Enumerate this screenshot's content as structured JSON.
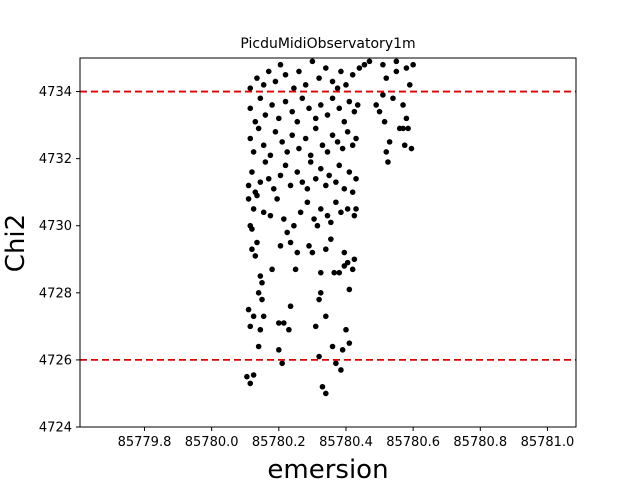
{
  "chart_data": {
    "type": "scatter",
    "title": "PicduMidiObservatory1m",
    "xlabel": "emersion",
    "ylabel": "Chi2",
    "xlim": [
      85779.608,
      85781.085
    ],
    "ylim": [
      4724,
      4735
    ],
    "x_ticks": [
      85779.8,
      85780.0,
      85780.2,
      85780.4,
      85780.6,
      85780.8,
      85781.0
    ],
    "x_tick_labels": [
      "85779.8",
      "85780.0",
      "85780.2",
      "85780.4",
      "85780.6",
      "85780.8",
      "85781.0"
    ],
    "y_ticks": [
      4724,
      4726,
      4728,
      4730,
      4732,
      4734
    ],
    "y_tick_labels": [
      "4724",
      "4726",
      "4728",
      "4730",
      "4732",
      "4734"
    ],
    "hlines": [
      4726,
      4734
    ],
    "hline_color": "#e00000",
    "marker_color": "#000000",
    "grid": false,
    "points": [
      [
        85780.105,
        4725.5
      ],
      [
        85780.115,
        4725.3
      ],
      [
        85780.125,
        4725.55
      ],
      [
        85780.2,
        4726.3
      ],
      [
        85780.21,
        4725.9
      ],
      [
        85780.32,
        4726.1
      ],
      [
        85780.33,
        4725.2
      ],
      [
        85780.34,
        4725.0
      ],
      [
        85780.36,
        4726.4
      ],
      [
        85780.37,
        4725.9
      ],
      [
        85780.385,
        4725.7
      ],
      [
        85780.39,
        4726.3
      ],
      [
        85780.4,
        4726.9
      ],
      [
        85780.41,
        4726.5
      ],
      [
        85780.11,
        4727.5
      ],
      [
        85780.115,
        4727.0
      ],
      [
        85780.125,
        4727.3
      ],
      [
        85780.14,
        4728.0
      ],
      [
        85780.15,
        4727.8
      ],
      [
        85780.155,
        4727.3
      ],
      [
        85780.2,
        4727.1
      ],
      [
        85780.215,
        4727.1
      ],
      [
        85780.23,
        4726.9
      ],
      [
        85780.235,
        4727.6
      ],
      [
        85780.31,
        4727.0
      ],
      [
        85780.32,
        4727.8
      ],
      [
        85780.325,
        4728.0
      ],
      [
        85780.34,
        4727.3
      ],
      [
        85780.38,
        4728.6
      ],
      [
        85780.395,
        4728.8
      ],
      [
        85780.41,
        4728.1
      ],
      [
        85780.42,
        4728.7
      ],
      [
        85780.14,
        4726.4
      ],
      [
        85780.145,
        4726.9
      ],
      [
        85780.12,
        4729.3
      ],
      [
        85780.13,
        4729.1
      ],
      [
        85780.135,
        4729.5
      ],
      [
        85780.145,
        4728.5
      ],
      [
        85780.15,
        4728.3
      ],
      [
        85780.18,
        4728.7
      ],
      [
        85780.205,
        4729.4
      ],
      [
        85780.225,
        4729.8
      ],
      [
        85780.235,
        4729.5
      ],
      [
        85780.25,
        4728.7
      ],
      [
        85780.255,
        4729.2
      ],
      [
        85780.29,
        4729.4
      ],
      [
        85780.3,
        4729.2
      ],
      [
        85780.325,
        4728.6
      ],
      [
        85780.34,
        4729.3
      ],
      [
        85780.355,
        4729.6
      ],
      [
        85780.365,
        4728.6
      ],
      [
        85780.395,
        4729.2
      ],
      [
        85780.405,
        4728.9
      ],
      [
        85780.425,
        4729.0
      ],
      [
        85780.115,
        4730.0
      ],
      [
        85780.125,
        4730.5
      ],
      [
        85780.135,
        4730.9
      ],
      [
        85780.155,
        4730.4
      ],
      [
        85780.175,
        4730.3
      ],
      [
        85780.195,
        4730.8
      ],
      [
        85780.215,
        4730.2
      ],
      [
        85780.245,
        4730.0
      ],
      [
        85780.265,
        4730.4
      ],
      [
        85780.285,
        4730.7
      ],
      [
        85780.305,
        4730.2
      ],
      [
        85780.315,
        4730.0
      ],
      [
        85780.325,
        4730.5
      ],
      [
        85780.345,
        4730.3
      ],
      [
        85780.355,
        4730.1
      ],
      [
        85780.37,
        4730.7
      ],
      [
        85780.385,
        4730.4
      ],
      [
        85780.405,
        4730.5
      ],
      [
        85780.425,
        4730.3
      ],
      [
        85780.43,
        4730.5
      ],
      [
        85780.11,
        4730.8
      ],
      [
        85780.12,
        4729.9
      ],
      [
        85780.11,
        4731.2
      ],
      [
        85780.12,
        4731.6
      ],
      [
        85780.13,
        4731.0
      ],
      [
        85780.145,
        4731.3
      ],
      [
        85780.16,
        4731.9
      ],
      [
        85780.17,
        4731.4
      ],
      [
        85780.185,
        4731.1
      ],
      [
        85780.205,
        4731.5
      ],
      [
        85780.22,
        4731.8
      ],
      [
        85780.235,
        4731.2
      ],
      [
        85780.255,
        4731.6
      ],
      [
        85780.27,
        4731.3
      ],
      [
        85780.285,
        4731.1
      ],
      [
        85780.295,
        4731.9
      ],
      [
        85780.31,
        4731.4
      ],
      [
        85780.325,
        4731.7
      ],
      [
        85780.34,
        4731.2
      ],
      [
        85780.35,
        4731.5
      ],
      [
        85780.37,
        4731.3
      ],
      [
        85780.38,
        4731.8
      ],
      [
        85780.395,
        4731.1
      ],
      [
        85780.41,
        4731.6
      ],
      [
        85780.42,
        4731.0
      ],
      [
        85780.43,
        4731.4
      ],
      [
        85780.115,
        4732.6
      ],
      [
        85780.125,
        4732.2
      ],
      [
        85780.14,
        4732.9
      ],
      [
        85780.155,
        4732.4
      ],
      [
        85780.175,
        4732.1
      ],
      [
        85780.19,
        4732.8
      ],
      [
        85780.21,
        4732.5
      ],
      [
        85780.225,
        4732.2
      ],
      [
        85780.24,
        4732.7
      ],
      [
        85780.26,
        4732.3
      ],
      [
        85780.28,
        4732.6
      ],
      [
        85780.295,
        4732.1
      ],
      [
        85780.31,
        4732.9
      ],
      [
        85780.33,
        4732.4
      ],
      [
        85780.345,
        4732.2
      ],
      [
        85780.36,
        4732.7
      ],
      [
        85780.375,
        4732.5
      ],
      [
        85780.39,
        4732.3
      ],
      [
        85780.405,
        4732.8
      ],
      [
        85780.42,
        4732.4
      ],
      [
        85780.43,
        4732.6
      ],
      [
        85780.115,
        4733.5
      ],
      [
        85780.13,
        4733.1
      ],
      [
        85780.145,
        4733.8
      ],
      [
        85780.16,
        4733.3
      ],
      [
        85780.18,
        4733.6
      ],
      [
        85780.2,
        4733.2
      ],
      [
        85780.22,
        4733.7
      ],
      [
        85780.24,
        4733.4
      ],
      [
        85780.255,
        4733.1
      ],
      [
        85780.27,
        4733.8
      ],
      [
        85780.29,
        4733.5
      ],
      [
        85780.31,
        4733.2
      ],
      [
        85780.325,
        4733.6
      ],
      [
        85780.345,
        4733.3
      ],
      [
        85780.36,
        4733.8
      ],
      [
        85780.38,
        4733.5
      ],
      [
        85780.395,
        4733.1
      ],
      [
        85780.41,
        4733.7
      ],
      [
        85780.425,
        4733.4
      ],
      [
        85780.435,
        4733.6
      ],
      [
        85780.115,
        4734.1
      ],
      [
        85780.135,
        4734.4
      ],
      [
        85780.155,
        4734.2
      ],
      [
        85780.17,
        4734.6
      ],
      [
        85780.19,
        4734.3
      ],
      [
        85780.205,
        4734.8
      ],
      [
        85780.22,
        4734.5
      ],
      [
        85780.245,
        4734.1
      ],
      [
        85780.26,
        4734.6
      ],
      [
        85780.28,
        4734.2
      ],
      [
        85780.3,
        4734.9
      ],
      [
        85780.32,
        4734.4
      ],
      [
        85780.34,
        4734.7
      ],
      [
        85780.36,
        4734.3
      ],
      [
        85780.375,
        4734.1
      ],
      [
        85780.385,
        4734.6
      ],
      [
        85780.4,
        4734.2
      ],
      [
        85780.42,
        4734.5
      ],
      [
        85780.44,
        4734.7
      ],
      [
        85780.455,
        4734.8
      ],
      [
        85780.47,
        4734.9
      ],
      [
        85780.49,
        4733.6
      ],
      [
        85780.5,
        4733.4
      ],
      [
        85780.51,
        4733.9
      ],
      [
        85780.515,
        4733.1
      ],
      [
        85780.52,
        4732.2
      ],
      [
        85780.525,
        4731.9
      ],
      [
        85780.53,
        4732.5
      ],
      [
        85780.55,
        4734.6
      ],
      [
        85780.56,
        4732.9
      ],
      [
        85780.57,
        4733.6
      ],
      [
        85780.575,
        4732.4
      ],
      [
        85780.58,
        4734.7
      ],
      [
        85780.585,
        4732.9
      ],
      [
        85780.59,
        4734.2
      ],
      [
        85780.595,
        4732.3
      ],
      [
        85780.6,
        4734.8
      ],
      [
        85780.52,
        4734.4
      ],
      [
        85780.54,
        4733.8
      ],
      [
        85780.57,
        4732.9
      ],
      [
        85780.58,
        4733.2
      ],
      [
        85780.51,
        4734.8
      ],
      [
        85780.55,
        4734.9
      ]
    ]
  }
}
